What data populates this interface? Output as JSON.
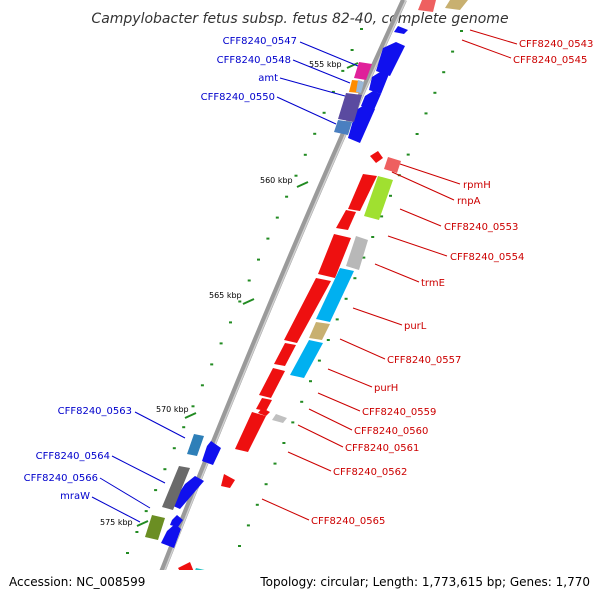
{
  "title": "Campylobacter fetus subsp. fetus 82-40, complete genome",
  "footer": {
    "accession": "Accession: NC_008599",
    "topology": "Topology: circular; Length: 1,773,615 bp; Genes: 1,770"
  },
  "kbp_labels": [
    "555 kbp",
    "560 kbp",
    "565 kbp",
    "570 kbp",
    "575 kbp"
  ],
  "gene_labels_left": [
    "CFF8240_0547",
    "CFF8240_0548",
    "amt",
    "CFF8240_0550",
    "CFF8240_0563",
    "CFF8240_0564",
    "CFF8240_0566",
    "mraW"
  ],
  "gene_labels_right": [
    "CFF8240_0543",
    "CFF8240_0545",
    "rpmH",
    "rnpA",
    "CFF8240_0553",
    "CFF8240_0554",
    "trmE",
    "purL",
    "CFF8240_0557",
    "purH",
    "CFF8240_0559",
    "CFF8240_0560",
    "CFF8240_0561",
    "CFF8240_0562",
    "CFF8240_0565"
  ],
  "colors": {
    "forward_strand": "#0000ee",
    "reverse_strand": "#ee0000",
    "backbone": "#888888",
    "tick": "#228b22",
    "label_left": "#0000cc",
    "label_right": "#cc0000"
  }
}
